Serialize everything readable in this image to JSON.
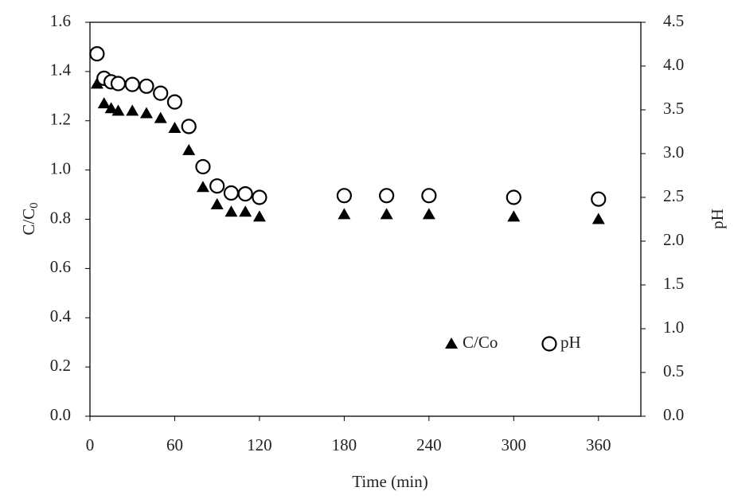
{
  "chart_data": {
    "type": "scatter",
    "xlabel": "Time (min)",
    "ylabel": "C/C",
    "ylabel_subscript": "0",
    "y2label": "pH",
    "x": [
      5,
      10,
      15,
      20,
      30,
      40,
      50,
      60,
      70,
      80,
      90,
      100,
      110,
      120,
      180,
      210,
      240,
      300,
      360
    ],
    "series": [
      {
        "name": "C/Co",
        "marker": "triangle",
        "color": "#000000",
        "values": [
          1.35,
          1.27,
          1.25,
          1.24,
          1.24,
          1.23,
          1.21,
          1.17,
          1.08,
          0.93,
          0.86,
          0.83,
          0.83,
          0.81,
          0.82,
          0.82,
          0.82,
          0.81,
          0.8
        ]
      },
      {
        "name": "pH",
        "marker": "open-circle",
        "color": "#000000",
        "axis": "y2",
        "values": [
          4.14,
          3.86,
          3.82,
          3.8,
          3.79,
          3.77,
          3.69,
          3.59,
          3.31,
          2.85,
          2.63,
          2.55,
          2.54,
          2.5,
          2.52,
          2.52,
          2.52,
          2.5,
          2.48
        ]
      }
    ],
    "xlim": [
      0,
      390
    ],
    "xticks": [
      0,
      60,
      120,
      180,
      240,
      300,
      360
    ],
    "ylim": [
      0,
      1.6
    ],
    "yticks": [
      {
        "value": 0,
        "label": "0.0"
      },
      {
        "value": 0.2,
        "label": "0.2"
      },
      {
        "value": 0.4,
        "label": "0.4"
      },
      {
        "value": 0.6,
        "label": "0.6"
      },
      {
        "value": 0.8,
        "label": "0.8"
      },
      {
        "value": 1.0,
        "label": "1.0"
      },
      {
        "value": 1.2,
        "label": "1.2"
      },
      {
        "value": 1.4,
        "label": "1.4"
      },
      {
        "value": 1.6,
        "label": "1.6"
      }
    ],
    "y2lim": [
      0,
      4.5
    ],
    "y2ticks": [
      {
        "value": 0,
        "label": "0.0"
      },
      {
        "value": 0.5,
        "label": "0.5"
      },
      {
        "value": 1.0,
        "label": "1.0"
      },
      {
        "value": 1.5,
        "label": "1.5"
      },
      {
        "value": 2.0,
        "label": "2.0"
      },
      {
        "value": 2.5,
        "label": "2.5"
      },
      {
        "value": 3.0,
        "label": "3.0"
      },
      {
        "value": 3.5,
        "label": "3.5"
      },
      {
        "value": 4.0,
        "label": "4.0"
      },
      {
        "value": 4.5,
        "label": "4.5"
      }
    ],
    "legend": "lower-right",
    "grid": false
  }
}
